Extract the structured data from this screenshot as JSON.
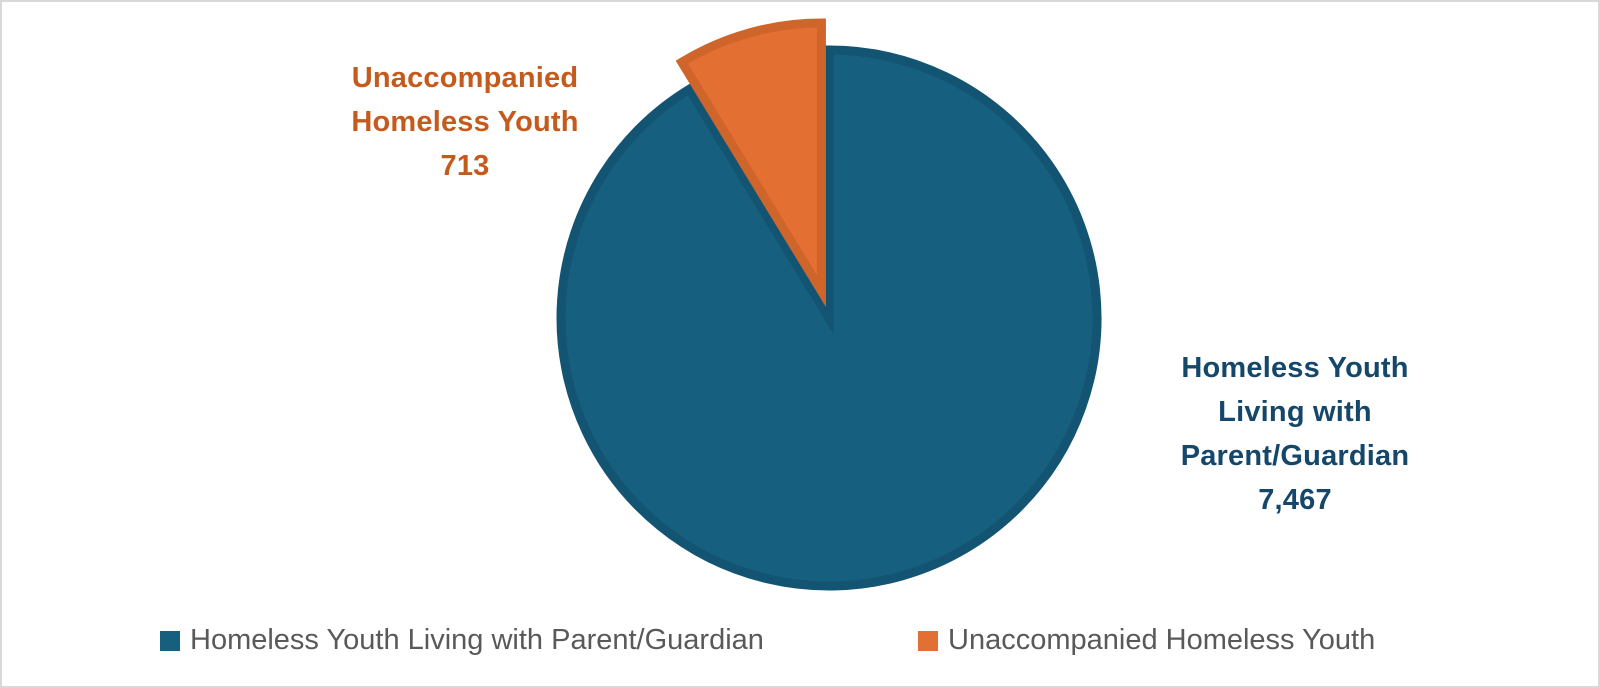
{
  "chart_data": {
    "type": "pie",
    "title": "",
    "categories": [
      "Homeless Youth Living with Parent/Guardian",
      "Unaccompanied Homeless Youth"
    ],
    "values": [
      7467,
      713
    ],
    "value_labels": [
      "7,467",
      "713"
    ],
    "percentages": [
      91.28,
      8.72
    ],
    "colors": [
      "#165f7e",
      "#e46f32"
    ],
    "border_colors": [
      "#125472",
      "#d0652b"
    ],
    "exploded": [
      false,
      true
    ],
    "start_angle_deg": 0,
    "direction": "clockwise-from-top; slice order: Homeless Youth Living with Parent/Guardian then Unaccompanied Homeless Youth",
    "legend_position": "bottom",
    "data_labels_shown": true
  },
  "labels": {
    "unaccompanied": {
      "line1": "Unaccompanied",
      "line2": "Homeless Youth",
      "value": "713",
      "color": "#c55a1d"
    },
    "with_parent": {
      "line1": "Homeless Youth",
      "line2": "Living with",
      "line3": "Parent/Guardian",
      "value": "7,467",
      "color": "#15476a"
    }
  },
  "legend": {
    "items": [
      {
        "label": "Homeless Youth Living with Parent/Guardian",
        "color": "#165f7e",
        "icon": "square-swatch"
      },
      {
        "label": "Unaccompanied Homeless Youth",
        "color": "#e46f32",
        "icon": "square-swatch"
      }
    ]
  }
}
